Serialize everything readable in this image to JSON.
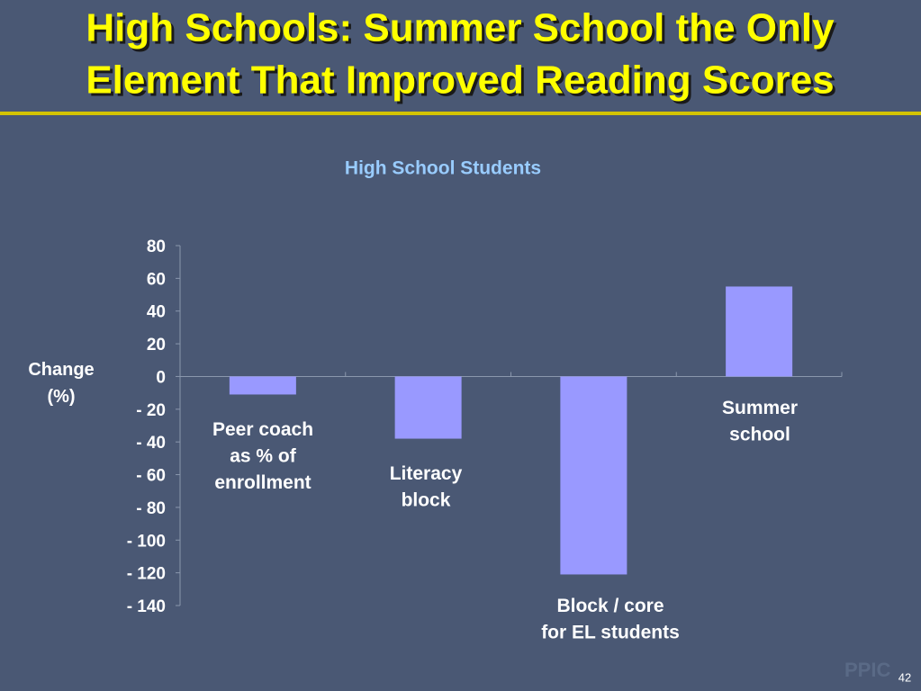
{
  "slide": {
    "title_lines": [
      "High Schools:  Summer School the Only",
      "Element That Improved Reading Scores"
    ],
    "logo": "PPIC",
    "page_number": "42"
  },
  "chart_data": {
    "type": "bar",
    "title": "High School Students",
    "y_label_lines": [
      "Change",
      "(%)"
    ],
    "categories": [
      "Peer coach\nas % of\nenrollment",
      "Literacy\nblock",
      "Block / core\nfor EL students",
      "Summer\nschool"
    ],
    "values": [
      -11,
      -38,
      -121,
      55
    ],
    "color": "#9999ff",
    "ylim": [
      -140,
      80
    ],
    "yticks": [
      80,
      60,
      40,
      20,
      0,
      {
        "value": -20,
        "label": "- 20"
      },
      {
        "value": -40,
        "label": "- 40"
      },
      {
        "value": -60,
        "label": "- 60"
      },
      {
        "value": -80,
        "label": "- 80"
      },
      {
        "value": -100,
        "label": "- 100"
      },
      {
        "value": -120,
        "label": "- 120"
      },
      {
        "value": -140,
        "label": "- 140"
      }
    ],
    "grid": false
  }
}
